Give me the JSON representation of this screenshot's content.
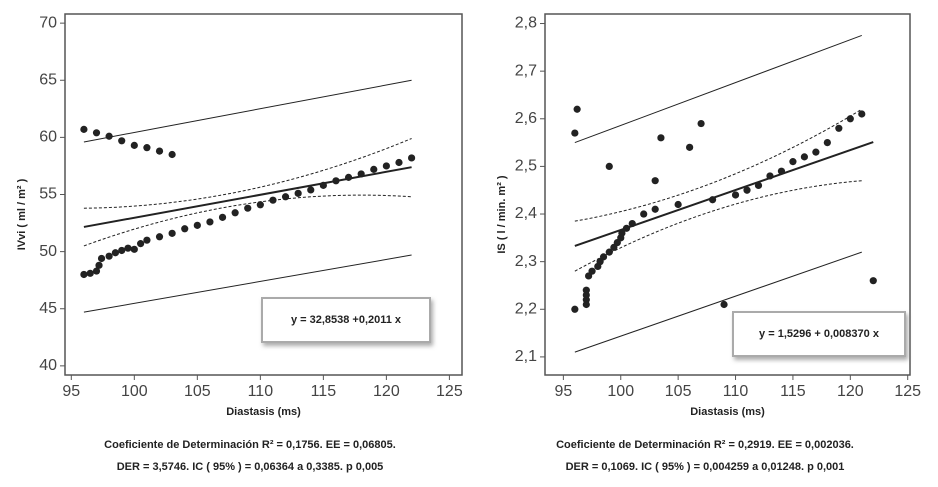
{
  "chart_data": [
    {
      "type": "scatter",
      "xlabel": "Diastasis (ms)",
      "ylabel": "IVvi ( ml / m² )",
      "xlim": [
        94.5,
        126
      ],
      "ylim": [
        39.2,
        70.8
      ],
      "xticks": [
        95,
        100,
        105,
        110,
        115,
        120,
        125
      ],
      "yticks": [
        40,
        45,
        50,
        55,
        60,
        65,
        70
      ],
      "color": "#222222",
      "x": [
        96,
        97,
        98,
        99,
        100,
        101,
        102,
        103,
        96,
        96.5,
        97,
        97.2,
        97.4,
        98,
        98.5,
        99,
        99.5,
        100,
        100.5,
        101,
        102,
        103,
        104,
        105,
        106,
        107,
        108,
        109,
        110,
        111,
        112,
        113,
        114,
        115,
        116,
        117,
        118,
        119,
        120,
        121,
        122
      ],
      "values": [
        60.7,
        60.4,
        60.1,
        59.7,
        59.3,
        59.1,
        58.8,
        58.5,
        48.0,
        48.1,
        48.3,
        48.8,
        49.4,
        49.6,
        49.9,
        50.1,
        50.3,
        50.2,
        50.7,
        51.0,
        51.3,
        51.6,
        52.0,
        52.3,
        52.6,
        53.0,
        53.4,
        53.8,
        54.1,
        54.5,
        54.8,
        55.1,
        55.4,
        55.8,
        56.2,
        56.5,
        56.8,
        57.2,
        57.5,
        57.8,
        58.2
      ],
      "lines": [
        {
          "style": "solid",
          "width": 2,
          "x": [
            96,
            122
          ],
          "values": [
            52.16,
            57.39
          ]
        },
        {
          "style": "solid",
          "width": 1,
          "x": [
            96,
            122
          ],
          "values": [
            59.6,
            65.0
          ]
        },
        {
          "style": "solid",
          "width": 1,
          "x": [
            96,
            122
          ],
          "values": [
            44.7,
            49.7
          ]
        },
        {
          "style": "dashed",
          "width": 1,
          "x": [
            96,
            109,
            122
          ],
          "values": [
            53.8,
            55.4,
            59.9
          ]
        },
        {
          "style": "dashed",
          "width": 1,
          "x": [
            96,
            109,
            122
          ],
          "values": [
            50.5,
            54.2,
            54.8
          ]
        }
      ],
      "equation": "y = 32,8538 +0,2011 x",
      "caption": [
        "Coeficiente de Determinación  R² = 0,1756.  EE = 0,06805.",
        "DER = 3,5746.  IC ( 95% ) =  0,06364 a 0,3385.   p   0,005"
      ]
    },
    {
      "type": "scatter",
      "xlabel": "Diastasis (ms)",
      "ylabel": "IS ( l / min. m² )",
      "xlim": [
        93.4,
        125.2
      ],
      "ylim": [
        2.062,
        2.82
      ],
      "xticks": [
        95,
        100,
        105,
        110,
        115,
        120,
        125
      ],
      "yticks": [
        {
          "value": 2.1,
          "label": "2,1"
        },
        {
          "value": 2.2,
          "label": "2,2"
        },
        {
          "value": 2.3,
          "label": "2,3"
        },
        {
          "value": 2.4,
          "label": "2,4"
        },
        {
          "value": 2.5,
          "label": "2,5"
        },
        {
          "value": 2.6,
          "label": "2,6"
        },
        {
          "value": 2.7,
          "label": "2,7"
        },
        {
          "value": 2.8,
          "label": "2,8"
        }
      ],
      "color": "#222222",
      "x": [
        96,
        96.2,
        96,
        97,
        97,
        97,
        97,
        97.2,
        97.5,
        98,
        98.2,
        98.5,
        99,
        99.4,
        99.7,
        100,
        100.1,
        100.5,
        101,
        102,
        103,
        105,
        108,
        110,
        111,
        112,
        113,
        114,
        115,
        116,
        117,
        118,
        119,
        120,
        121,
        99,
        103,
        103.5,
        106,
        107,
        109,
        122
      ],
      "values": [
        2.57,
        2.62,
        2.2,
        2.21,
        2.22,
        2.23,
        2.24,
        2.27,
        2.28,
        2.29,
        2.3,
        2.31,
        2.32,
        2.33,
        2.34,
        2.35,
        2.36,
        2.37,
        2.38,
        2.4,
        2.41,
        2.42,
        2.43,
        2.44,
        2.45,
        2.46,
        2.48,
        2.49,
        2.51,
        2.52,
        2.53,
        2.55,
        2.58,
        2.6,
        2.61,
        2.5,
        2.47,
        2.56,
        2.54,
        2.59,
        2.21,
        2.26
      ],
      "lines": [
        {
          "style": "solid",
          "width": 2,
          "x": [
            96,
            122
          ],
          "values": [
            2.333,
            2.551
          ]
        },
        {
          "style": "solid",
          "width": 1,
          "x": [
            96,
            121
          ],
          "values": [
            2.55,
            2.775
          ]
        },
        {
          "style": "solid",
          "width": 1,
          "x": [
            96,
            121
          ],
          "values": [
            2.11,
            2.32
          ]
        },
        {
          "style": "dashed",
          "width": 1,
          "x": [
            96,
            108.5,
            121
          ],
          "values": [
            2.385,
            2.47,
            2.62
          ]
        },
        {
          "style": "dashed",
          "width": 1,
          "x": [
            96,
            108.5,
            121
          ],
          "values": [
            2.28,
            2.41,
            2.47
          ]
        }
      ],
      "equation": "y = 1,5296 + 0,008370 x",
      "caption": [
        "Coeficiente de Determinación  R² = 0,2919.  EE = 0,002036.",
        "DER = 0,1069.  IC ( 95% ) =  0,004259 a 0,01248.   p   0,001"
      ]
    }
  ]
}
